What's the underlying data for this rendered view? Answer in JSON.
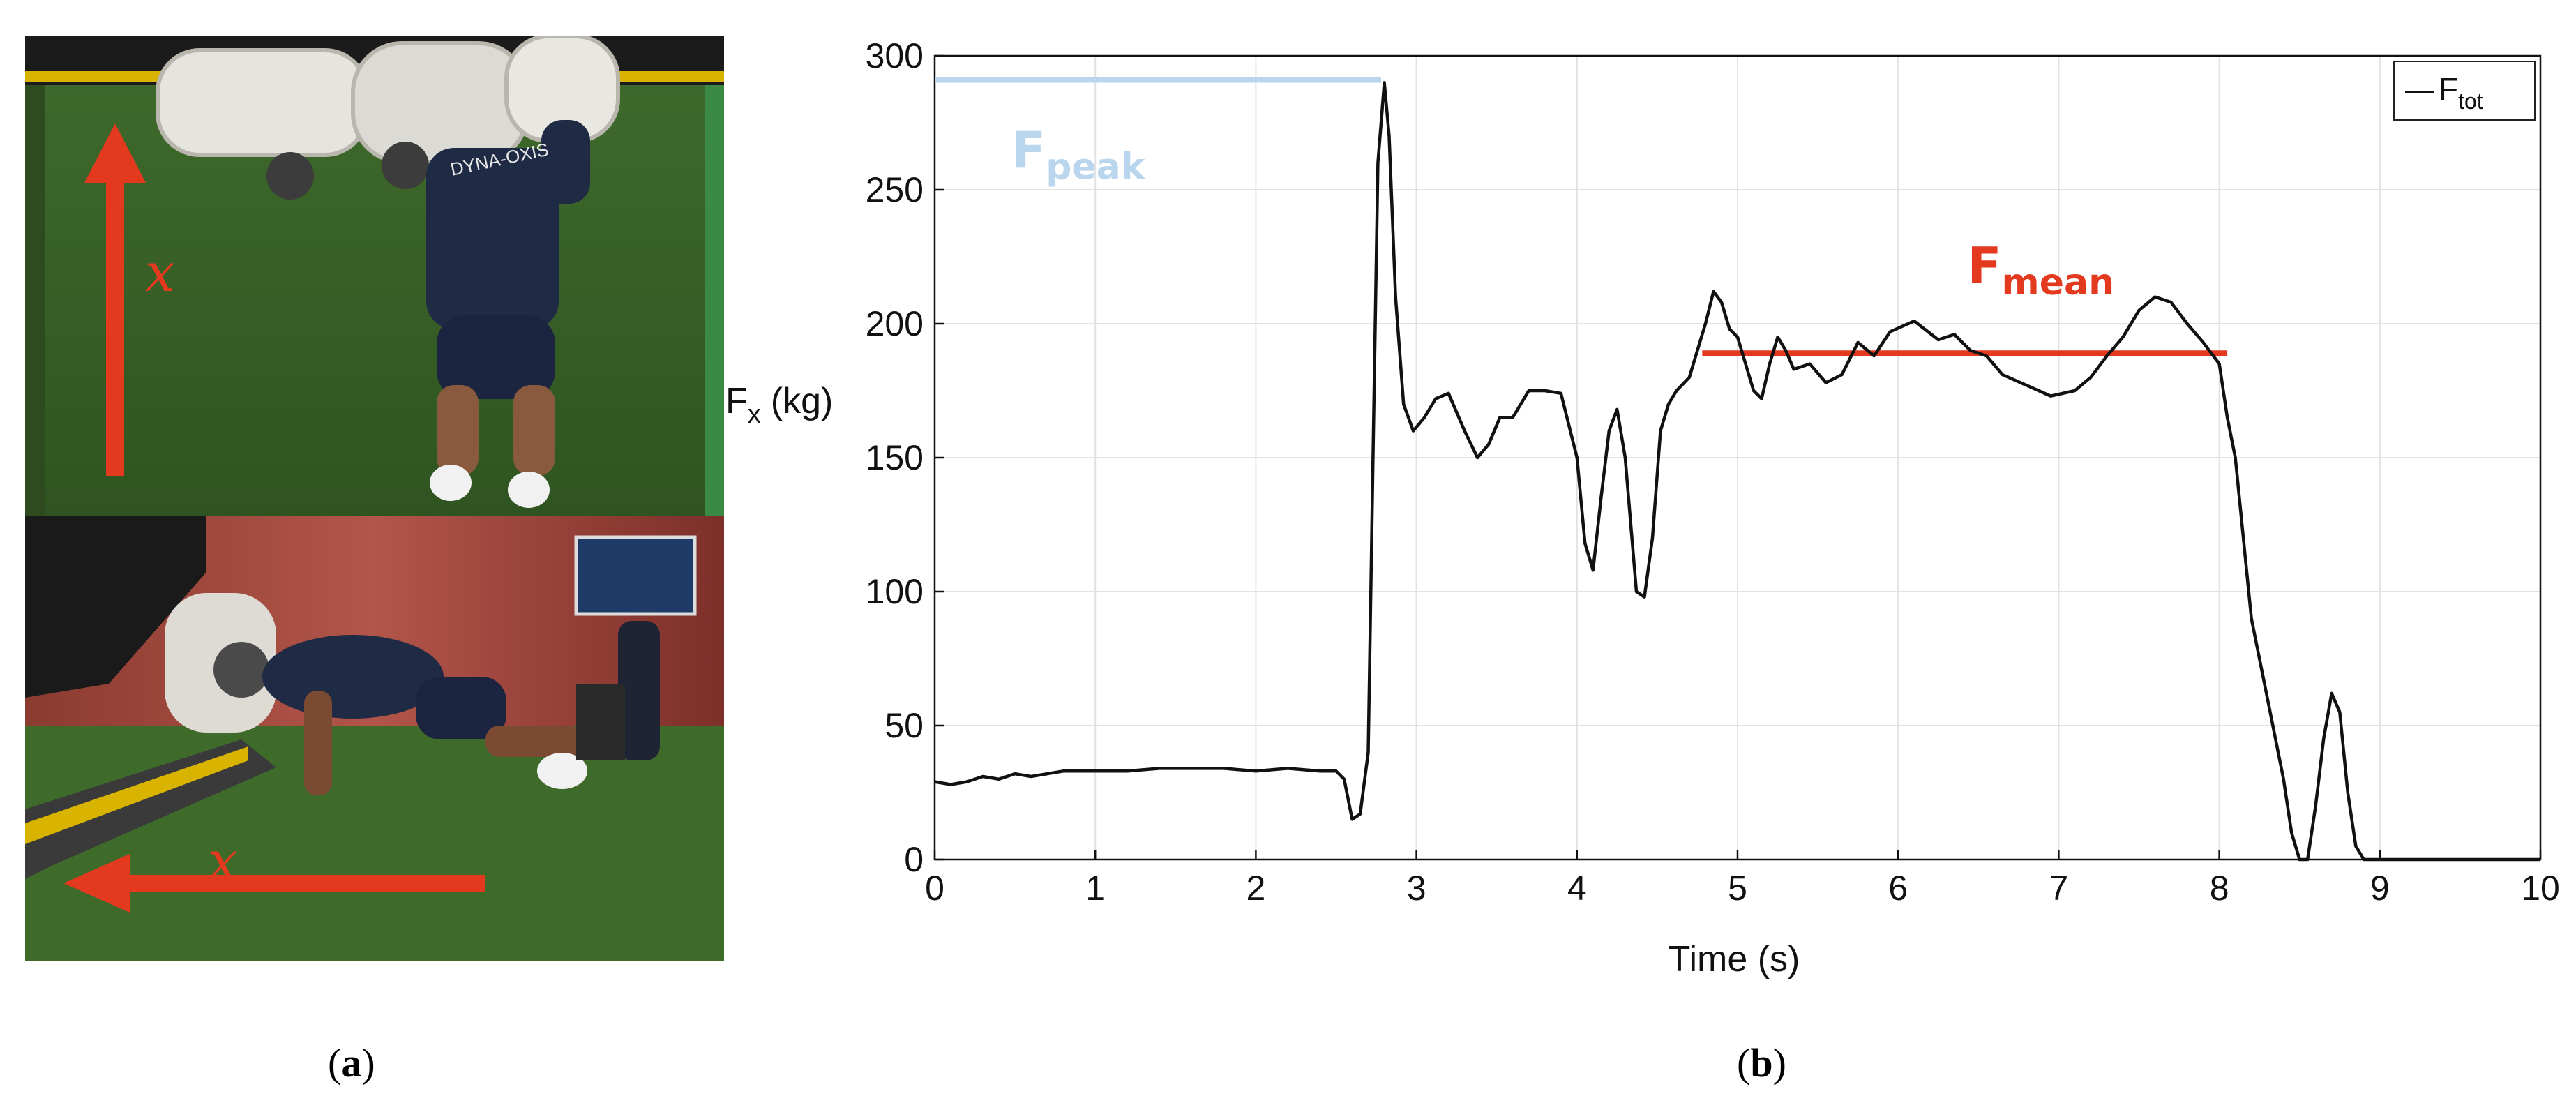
{
  "panel_a": {
    "caption_letter": "a",
    "top_photo": {
      "arrow_label": "x",
      "shirt_text": "DYNA-OXIS",
      "arrow_color": "#e2391f"
    },
    "bottom_photo": {
      "arrow_label": "x",
      "arrow_color": "#e2391f"
    }
  },
  "panel_b": {
    "caption_letter": "b"
  },
  "chart_data": {
    "type": "line",
    "xlabel": "Time (s)",
    "ylabel": "F",
    "ylabel_sub": "x",
    "ylabel_unit": "(kg)",
    "xlim": [
      0,
      10
    ],
    "ylim": [
      0,
      300
    ],
    "xticks": [
      "0",
      "1",
      "2",
      "3",
      "4",
      "5",
      "6",
      "7",
      "8",
      "9",
      "10"
    ],
    "yticks": [
      "0",
      "50",
      "100",
      "150",
      "200",
      "250",
      "300"
    ],
    "grid": true,
    "legend": {
      "position": "top-right",
      "label": "F",
      "label_sub": "tot"
    },
    "series": [
      {
        "name": "Ftot",
        "color": "#111111",
        "x": [
          0,
          0.1,
          0.2,
          0.3,
          0.4,
          0.5,
          0.6,
          0.8,
          1.0,
          1.2,
          1.4,
          1.6,
          1.8,
          2.0,
          2.2,
          2.4,
          2.5,
          2.55,
          2.6,
          2.65,
          2.7,
          2.73,
          2.76,
          2.8,
          2.83,
          2.87,
          2.92,
          2.98,
          3.05,
          3.12,
          3.2,
          3.3,
          3.38,
          3.45,
          3.52,
          3.6,
          3.7,
          3.8,
          3.9,
          4.0,
          4.05,
          4.1,
          4.15,
          4.2,
          4.25,
          4.3,
          4.37,
          4.42,
          4.47,
          4.52,
          4.57,
          4.62,
          4.7,
          4.75,
          4.8,
          4.85,
          4.9,
          4.95,
          5.0,
          5.05,
          5.1,
          5.15,
          5.2,
          5.25,
          5.3,
          5.35,
          5.45,
          5.55,
          5.65,
          5.75,
          5.85,
          5.95,
          6.1,
          6.25,
          6.35,
          6.45,
          6.55,
          6.65,
          6.8,
          6.95,
          7.1,
          7.2,
          7.3,
          7.4,
          7.5,
          7.6,
          7.7,
          7.8,
          7.9,
          8.0,
          8.05,
          8.1,
          8.15,
          8.2,
          8.3,
          8.4,
          8.45,
          8.5,
          8.55,
          8.6,
          8.65,
          8.7,
          8.75,
          8.8,
          8.85,
          8.9,
          8.95,
          9.0,
          9.5,
          10.0
        ],
        "y": [
          29,
          28,
          29,
          31,
          30,
          32,
          31,
          33,
          33,
          33,
          34,
          34,
          34,
          33,
          34,
          33,
          33,
          30,
          15,
          17,
          40,
          150,
          260,
          290,
          270,
          210,
          170,
          160,
          165,
          172,
          174,
          160,
          150,
          155,
          165,
          165,
          175,
          175,
          174,
          150,
          118,
          108,
          135,
          160,
          168,
          150,
          100,
          98,
          120,
          160,
          170,
          175,
          180,
          190,
          200,
          212,
          208,
          198,
          195,
          185,
          175,
          172,
          185,
          195,
          190,
          183,
          185,
          178,
          181,
          193,
          188,
          197,
          201,
          194,
          196,
          190,
          188,
          181,
          177,
          173,
          175,
          180,
          188,
          195,
          205,
          210,
          208,
          200,
          193,
          185,
          165,
          150,
          120,
          90,
          60,
          30,
          10,
          0,
          0,
          20,
          45,
          62,
          55,
          25,
          5,
          0,
          0,
          0,
          0,
          0
        ]
      }
    ],
    "annotations": [
      {
        "name": "peak",
        "label": "F",
        "label_sub": "peak",
        "value": 291,
        "x_range": [
          0,
          2.78
        ],
        "color": "#b9d6ee"
      },
      {
        "name": "mean",
        "label": "F",
        "label_sub": "mean",
        "value": 189,
        "x_range": [
          4.78,
          8.05
        ],
        "color": "#e2391f"
      }
    ]
  }
}
